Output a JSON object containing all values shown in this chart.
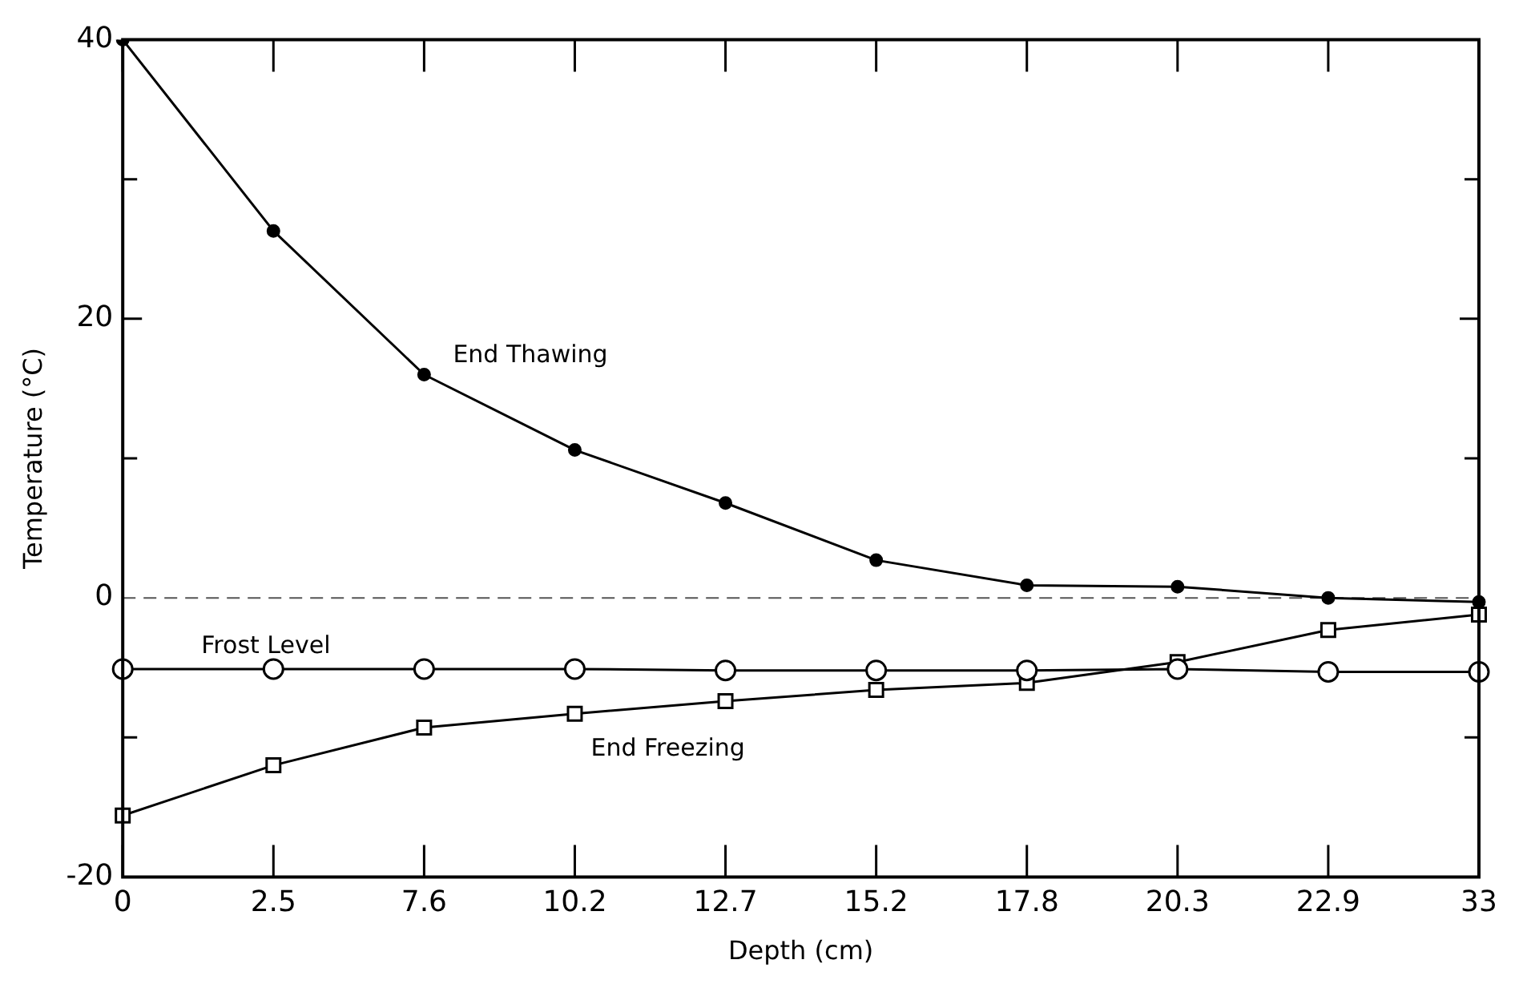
{
  "chart_data": {
    "type": "line",
    "xlabel": "Depth (cm)",
    "ylabel": "Temperature (°C)",
    "categories": [
      "0",
      "2.5",
      "7.6",
      "10.2",
      "12.7",
      "15.2",
      "17.8",
      "20.3",
      "22.9",
      "33"
    ],
    "ylim": [
      -20,
      40
    ],
    "yticks": [
      -20,
      {
        "value": -10,
        "label": null
      },
      0,
      {
        "value": 10,
        "label": null
      },
      20,
      {
        "value": 30,
        "label": null
      },
      40
    ],
    "grid": false,
    "legend": false,
    "line_style": "solid",
    "series": [
      {
        "name": "End Thawing",
        "color": "#000000",
        "marker": "circle",
        "values": [
          40,
          26.3,
          16,
          10.6,
          6.8,
          2.7,
          0.9,
          0.8,
          0,
          -0.3
        ]
      },
      {
        "name": "Frost Level",
        "color": "#000000",
        "marker": "circle",
        "values": [
          -5.1,
          -5.1,
          -5.1,
          -5.1,
          -5.2,
          -5.2,
          -5.2,
          -5.1,
          -5.3,
          -5.3
        ]
      },
      {
        "name": "End Freezing",
        "color": "#000000",
        "marker": "square",
        "values": [
          -15.6,
          -12,
          -9.3,
          -8.3,
          -7.4,
          -6.6,
          -6.1,
          -4.6,
          -2.3,
          -1.2
        ]
      }
    ],
    "ref_lines": [
      {
        "axis": "y",
        "value": 0,
        "line_style": "dashed",
        "color": "#555555"
      }
    ]
  }
}
